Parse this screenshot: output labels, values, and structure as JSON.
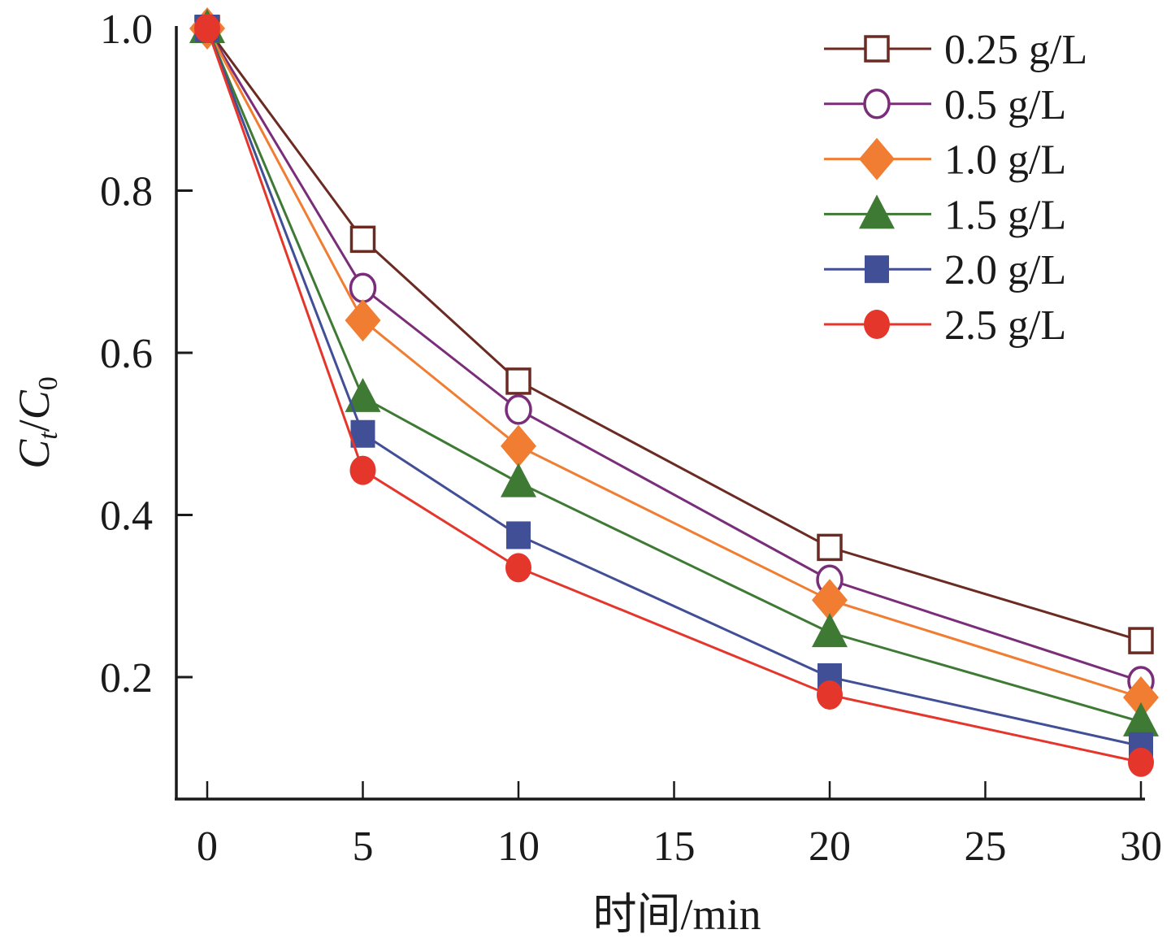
{
  "chart_data": {
    "type": "line",
    "title": "",
    "xlabel": "时间/min",
    "ylabel_main": "C",
    "ylabel_sub1": "t",
    "ylabel_sep": "/",
    "ylabel_sub2": "0",
    "ylabel": "Ct/C0",
    "xlim": [
      -1,
      30.9
    ],
    "ylim": [
      0.05,
      1.0
    ],
    "xticks": [
      0,
      5,
      10,
      15,
      20,
      25,
      30
    ],
    "xtick_labels": [
      "0",
      "5",
      "10",
      "15",
      "20",
      "25",
      "30"
    ],
    "yticks": [
      0.2,
      0.4,
      0.6,
      0.8,
      1.0
    ],
    "ytick_labels": [
      "0.2",
      "0.4",
      "0.6",
      "0.8",
      "1.0"
    ],
    "grid": false,
    "legend_position": "top-right",
    "x": [
      0,
      5,
      10,
      20,
      30
    ],
    "series": [
      {
        "name": "0.25 g/L",
        "color": "#6b2a22",
        "marker": "square-open",
        "values": [
          1.0,
          0.74,
          0.565,
          0.36,
          0.245
        ]
      },
      {
        "name": "0.5 g/L",
        "color": "#7a2e7a",
        "marker": "circle-open",
        "values": [
          1.0,
          0.68,
          0.53,
          0.32,
          0.195
        ]
      },
      {
        "name": "1.0 g/L",
        "color": "#f07d32",
        "marker": "diamond",
        "values": [
          1.0,
          0.64,
          0.485,
          0.295,
          0.175
        ]
      },
      {
        "name": "1.5 g/L",
        "color": "#3f7a35",
        "marker": "triangle",
        "values": [
          1.0,
          0.545,
          0.44,
          0.255,
          0.145
        ]
      },
      {
        "name": "2.0 g/L",
        "color": "#414f96",
        "marker": "square",
        "values": [
          1.0,
          0.5,
          0.375,
          0.2,
          0.115
        ]
      },
      {
        "name": "2.5 g/L",
        "color": "#e5362c",
        "marker": "circle",
        "values": [
          1.0,
          0.455,
          0.335,
          0.178,
          0.095
        ]
      }
    ]
  }
}
